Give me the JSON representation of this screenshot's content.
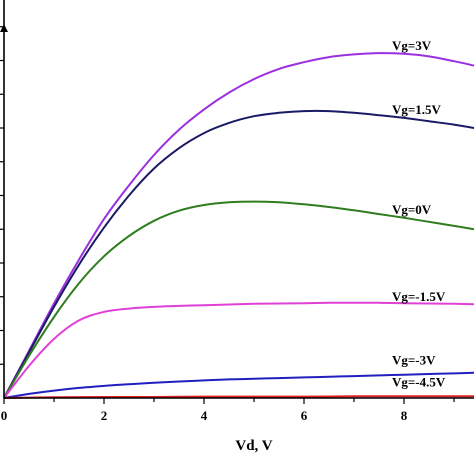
{
  "chart_data": {
    "type": "line",
    "title": "",
    "xlabel": "Vd, V",
    "ylabel": "",
    "xlim": [
      0,
      9.4
    ],
    "ylim": [
      0,
      11.2
    ],
    "x_ticks": [
      0,
      2,
      4,
      6,
      8
    ],
    "grid": false,
    "series": [
      {
        "name": "Vg=3V",
        "color": "#9b30e0",
        "x": [
          0,
          0.5,
          1,
          1.5,
          2,
          2.5,
          3,
          3.5,
          4,
          4.5,
          5,
          5.5,
          6,
          6.5,
          7,
          7.5,
          8,
          8.5,
          9,
          9.4
        ],
        "y": [
          0,
          1.4,
          2.8,
          4.1,
          5.3,
          6.3,
          7.2,
          7.95,
          8.55,
          9.05,
          9.45,
          9.75,
          9.95,
          10.1,
          10.18,
          10.22,
          10.2,
          10.12,
          9.98,
          9.85
        ]
      },
      {
        "name": "Vg=1.5V",
        "color": "#1a1a66",
        "x": [
          0,
          0.5,
          1,
          1.5,
          2,
          2.5,
          3,
          3.5,
          4,
          4.5,
          5,
          5.5,
          6,
          6.5,
          7,
          7.5,
          8,
          8.5,
          9,
          9.4
        ],
        "y": [
          0,
          1.35,
          2.7,
          3.95,
          5.05,
          6.0,
          6.8,
          7.4,
          7.85,
          8.15,
          8.35,
          8.45,
          8.5,
          8.5,
          8.45,
          8.38,
          8.3,
          8.2,
          8.1,
          8.0
        ]
      },
      {
        "name": "Vg=0V",
        "color": "#2e7d1f",
        "x": [
          0,
          0.5,
          1,
          1.5,
          2,
          2.5,
          3,
          3.5,
          4,
          4.5,
          5,
          5.5,
          6,
          6.5,
          7,
          7.5,
          8,
          8.5,
          9,
          9.4
        ],
        "y": [
          0,
          1.25,
          2.4,
          3.4,
          4.2,
          4.8,
          5.25,
          5.55,
          5.72,
          5.8,
          5.82,
          5.8,
          5.74,
          5.66,
          5.56,
          5.45,
          5.34,
          5.22,
          5.1,
          5.0
        ]
      },
      {
        "name": "Vg=-1.5V",
        "color": "#e040d8",
        "x": [
          0,
          0.5,
          1,
          1.5,
          2,
          2.5,
          3,
          3.5,
          4,
          4.5,
          5,
          5.5,
          6,
          6.5,
          7,
          7.5,
          8,
          8.5,
          9,
          9.4
        ],
        "y": [
          0,
          0.95,
          1.75,
          2.3,
          2.55,
          2.65,
          2.7,
          2.73,
          2.75,
          2.77,
          2.79,
          2.8,
          2.81,
          2.82,
          2.82,
          2.82,
          2.81,
          2.8,
          2.79,
          2.78
        ]
      },
      {
        "name": "Vg=-3V",
        "color": "#2020c0",
        "x": [
          0,
          0.5,
          1,
          1.5,
          2,
          2.5,
          3,
          3.5,
          4,
          4.5,
          5,
          5.5,
          6,
          6.5,
          7,
          7.5,
          8,
          8.5,
          9,
          9.4
        ],
        "y": [
          0,
          0.12,
          0.22,
          0.3,
          0.36,
          0.41,
          0.45,
          0.49,
          0.52,
          0.55,
          0.57,
          0.59,
          0.61,
          0.63,
          0.65,
          0.67,
          0.69,
          0.71,
          0.73,
          0.75
        ]
      },
      {
        "name": "Vg=-4.5V",
        "color": "#e02020",
        "x": [
          0,
          1,
          2,
          3,
          4,
          5,
          6,
          7,
          8,
          9,
          9.4
        ],
        "y": [
          0,
          0.02,
          0.03,
          0.03,
          0.04,
          0.04,
          0.04,
          0.05,
          0.05,
          0.05,
          0.05
        ]
      }
    ]
  }
}
